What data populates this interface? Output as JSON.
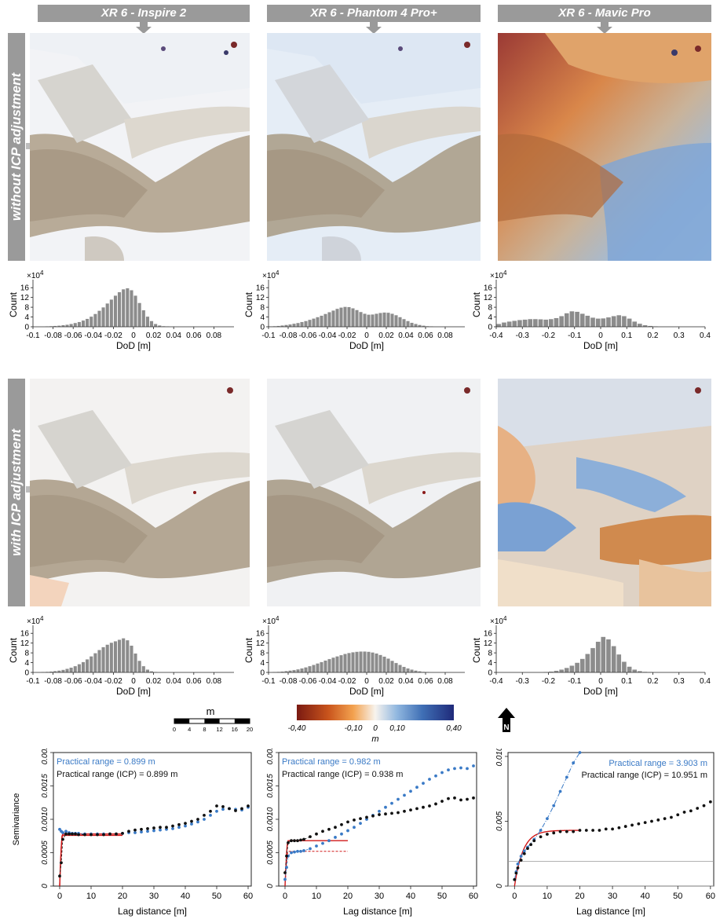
{
  "columns": [
    {
      "title": "XR 6 - Inspire 2"
    },
    {
      "title": "XR 6 - Phantom 4 Pro+"
    },
    {
      "title": "XR 6 - Mavic Pro"
    }
  ],
  "rows": [
    {
      "label": "without ICP adjustment"
    },
    {
      "label": "with ICP adjustment"
    }
  ],
  "histograms": {
    "ylabel": "Count",
    "xlabel": "DoD [m]",
    "exponent_base": "×10",
    "exponent": "4",
    "yticks": [
      "0",
      "4",
      "8",
      "12",
      "16"
    ],
    "xticks_small": [
      "-0.1",
      "-0.08",
      "-0.06",
      "-0.04",
      "-0.02",
      "0",
      "0.02",
      "0.04",
      "0.06",
      "0.08"
    ],
    "xticks_large": [
      "-0.4",
      "-0.3",
      "-0.2",
      "-0.1",
      "0",
      "0.1",
      "0.2",
      "0.3",
      "0.4"
    ]
  },
  "scale_bar": {
    "unit": "m",
    "ticks": [
      "0",
      "4",
      "8",
      "12",
      "16",
      "20"
    ]
  },
  "color_bar": {
    "unit": "m",
    "ticks": [
      "-0,40",
      "-0,10",
      "0",
      "0,10",
      "0,40"
    ],
    "colors": [
      "#7a1a12",
      "#c9541c",
      "#f3a24f",
      "#f7f3ee",
      "#8fb6df",
      "#3f6fb5",
      "#1f2a7a"
    ]
  },
  "north_label": "N",
  "colors": {
    "blue_series": "#3a7ac6",
    "black_series": "#111111",
    "fit": "#d01818"
  },
  "chart_data": [
    {
      "type": "bar",
      "panel": "without ICP - Inspire 2",
      "xlabel": "DoD [m]",
      "ylabel": "Count",
      "y_unit": "x10^4",
      "xlim": [
        -0.1,
        0.1
      ],
      "ylim": [
        0,
        18
      ],
      "x": [
        -0.098,
        -0.094,
        -0.09,
        -0.086,
        -0.082,
        -0.078,
        -0.074,
        -0.07,
        -0.066,
        -0.062,
        -0.058,
        -0.054,
        -0.05,
        -0.046,
        -0.042,
        -0.038,
        -0.034,
        -0.03,
        -0.026,
        -0.022,
        -0.018,
        -0.014,
        -0.01,
        -0.006,
        -0.002,
        0.002,
        0.006,
        0.01,
        0.014,
        0.018,
        0.022,
        0.026,
        0.03,
        0.034,
        0.038,
        0.042,
        0.046,
        0.05
      ],
      "values": [
        0.1,
        0.1,
        0.1,
        0.2,
        0.3,
        0.4,
        0.5,
        0.7,
        0.9,
        1.2,
        1.6,
        2.0,
        2.6,
        3.3,
        4.2,
        5.3,
        6.6,
        8.0,
        9.6,
        11.2,
        12.8,
        14.2,
        15.4,
        15.8,
        15.0,
        12.8,
        9.8,
        6.8,
        4.2,
        2.4,
        1.2,
        0.6,
        0.3,
        0.2,
        0.1,
        0.1,
        0.1,
        0.1
      ]
    },
    {
      "type": "bar",
      "panel": "without ICP - Phantom 4 Pro+",
      "xlabel": "DoD [m]",
      "ylabel": "Count",
      "y_unit": "x10^4",
      "xlim": [
        -0.1,
        0.1
      ],
      "ylim": [
        0,
        18
      ],
      "x": [
        -0.098,
        -0.094,
        -0.09,
        -0.086,
        -0.082,
        -0.078,
        -0.074,
        -0.07,
        -0.066,
        -0.062,
        -0.058,
        -0.054,
        -0.05,
        -0.046,
        -0.042,
        -0.038,
        -0.034,
        -0.03,
        -0.026,
        -0.022,
        -0.018,
        -0.014,
        -0.01,
        -0.006,
        -0.002,
        0.002,
        0.006,
        0.01,
        0.014,
        0.018,
        0.022,
        0.026,
        0.03,
        0.034,
        0.038,
        0.042,
        0.046,
        0.05,
        0.054,
        0.058,
        0.062,
        0.066,
        0.07,
        0.074,
        0.078
      ],
      "values": [
        0.2,
        0.3,
        0.4,
        0.6,
        0.8,
        1.0,
        1.3,
        1.6,
        2.0,
        2.4,
        2.9,
        3.4,
        4.0,
        4.6,
        5.3,
        6.0,
        6.7,
        7.4,
        7.9,
        8.2,
        8.1,
        7.6,
        6.9,
        6.1,
        5.4,
        5.0,
        5.1,
        5.4,
        5.7,
        5.9,
        5.8,
        5.4,
        4.8,
        4.0,
        3.2,
        2.4,
        1.7,
        1.2,
        0.8,
        0.5,
        0.3,
        0.2,
        0.1,
        0.1,
        0.1
      ]
    },
    {
      "type": "bar",
      "panel": "without ICP - Mavic Pro",
      "xlabel": "DoD [m]",
      "ylabel": "Count",
      "y_unit": "x10^4",
      "xlim": [
        -0.4,
        0.4
      ],
      "ylim": [
        0,
        18
      ],
      "x": [
        -0.39,
        -0.37,
        -0.35,
        -0.33,
        -0.31,
        -0.29,
        -0.27,
        -0.25,
        -0.23,
        -0.21,
        -0.19,
        -0.17,
        -0.15,
        -0.13,
        -0.11,
        -0.09,
        -0.07,
        -0.05,
        -0.03,
        -0.01,
        0.01,
        0.03,
        0.05,
        0.07,
        0.09,
        0.11,
        0.13,
        0.15,
        0.17,
        0.19,
        0.21,
        0.23
      ],
      "values": [
        1.2,
        1.8,
        2.2,
        2.5,
        2.8,
        3.0,
        3.2,
        3.2,
        3.1,
        3.0,
        3.2,
        3.6,
        4.4,
        5.6,
        6.4,
        6.2,
        5.4,
        4.6,
        3.8,
        3.4,
        3.5,
        3.9,
        4.4,
        4.8,
        4.4,
        3.4,
        2.2,
        1.3,
        0.7,
        0.4,
        0.2,
        0.1
      ]
    },
    {
      "type": "bar",
      "panel": "with ICP - Inspire 2",
      "xlabel": "DoD [m]",
      "ylabel": "Count",
      "y_unit": "x10^4",
      "xlim": [
        -0.1,
        0.1
      ],
      "ylim": [
        0,
        18
      ],
      "x": [
        -0.098,
        -0.094,
        -0.09,
        -0.086,
        -0.082,
        -0.078,
        -0.074,
        -0.07,
        -0.066,
        -0.062,
        -0.058,
        -0.054,
        -0.05,
        -0.046,
        -0.042,
        -0.038,
        -0.034,
        -0.03,
        -0.026,
        -0.022,
        -0.018,
        -0.014,
        -0.01,
        -0.006,
        -0.002,
        0.002,
        0.006,
        0.01,
        0.014,
        0.018,
        0.022
      ],
      "values": [
        0.1,
        0.1,
        0.2,
        0.3,
        0.4,
        0.6,
        0.8,
        1.1,
        1.5,
        2.0,
        2.6,
        3.4,
        4.3,
        5.4,
        6.6,
        7.9,
        9.2,
        10.4,
        11.4,
        12.2,
        12.8,
        13.4,
        14.0,
        13.2,
        11.0,
        7.8,
        4.8,
        2.6,
        1.2,
        0.5,
        0.2
      ]
    },
    {
      "type": "bar",
      "panel": "with ICP - Phantom 4 Pro+",
      "xlabel": "DoD [m]",
      "ylabel": "Count",
      "y_unit": "x10^4",
      "xlim": [
        -0.1,
        0.1
      ],
      "ylim": [
        0,
        18
      ],
      "x": [
        -0.098,
        -0.094,
        -0.09,
        -0.086,
        -0.082,
        -0.078,
        -0.074,
        -0.07,
        -0.066,
        -0.062,
        -0.058,
        -0.054,
        -0.05,
        -0.046,
        -0.042,
        -0.038,
        -0.034,
        -0.03,
        -0.026,
        -0.022,
        -0.018,
        -0.014,
        -0.01,
        -0.006,
        -0.002,
        0.002,
        0.006,
        0.01,
        0.014,
        0.018,
        0.022,
        0.026,
        0.03,
        0.034,
        0.038,
        0.042,
        0.046,
        0.05,
        0.054,
        0.058,
        0.062,
        0.066,
        0.07
      ],
      "values": [
        0.1,
        0.2,
        0.3,
        0.4,
        0.6,
        0.8,
        1.0,
        1.3,
        1.7,
        2.1,
        2.6,
        3.1,
        3.7,
        4.3,
        4.9,
        5.5,
        6.1,
        6.6,
        7.1,
        7.6,
        8.0,
        8.3,
        8.5,
        8.6,
        8.6,
        8.5,
        8.2,
        7.8,
        7.2,
        6.5,
        5.7,
        4.8,
        3.9,
        3.1,
        2.3,
        1.7,
        1.2,
        0.8,
        0.5,
        0.3,
        0.2,
        0.1,
        0.1
      ]
    },
    {
      "type": "bar",
      "panel": "with ICP - Mavic Pro",
      "xlabel": "DoD [m]",
      "ylabel": "Count",
      "y_unit": "x10^4",
      "xlim": [
        -0.4,
        0.4
      ],
      "ylim": [
        0,
        18
      ],
      "x": [
        -0.23,
        -0.21,
        -0.19,
        -0.17,
        -0.15,
        -0.13,
        -0.11,
        -0.09,
        -0.07,
        -0.05,
        -0.03,
        -0.01,
        0.01,
        0.03,
        0.05,
        0.07,
        0.09,
        0.11,
        0.13,
        0.15,
        0.17,
        0.19,
        0.21,
        0.23
      ],
      "values": [
        0.1,
        0.2,
        0.4,
        0.7,
        1.2,
        1.9,
        2.8,
        4.0,
        5.6,
        7.6,
        10.0,
        12.6,
        14.6,
        13.6,
        10.8,
        7.4,
        4.4,
        2.4,
        1.2,
        0.6,
        0.3,
        0.2,
        0.1,
        0.1
      ]
    },
    {
      "type": "scatter",
      "panel": "semivariogram - Inspire 2",
      "xlabel": "Lag distance [m]",
      "ylabel": "Semivariance",
      "xlim": [
        -2,
        61
      ],
      "ylim": [
        0,
        0.002
      ],
      "annotations": [
        "Practical range = 0.899 m",
        "Practical range (ICP) = 0.899 m"
      ],
      "series": [
        {
          "x": [
            0,
            0.5,
            1,
            2,
            3,
            4,
            5,
            6,
            8,
            10,
            12,
            14,
            16,
            18,
            20,
            22,
            24,
            26,
            28,
            30,
            32,
            34,
            36,
            38,
            40,
            42,
            44,
            46,
            48,
            50,
            52,
            54,
            56,
            58,
            60
          ],
          "values": [
            0.00085,
            0.00082,
            0.0008,
            0.00082,
            0.0008,
            0.00079,
            0.00079,
            0.00079,
            0.00078,
            0.00078,
            0.00078,
            0.00078,
            0.00078,
            0.00078,
            0.00079,
            0.0008,
            0.0008,
            0.00081,
            0.00082,
            0.00083,
            0.00084,
            0.00085,
            0.00086,
            0.00088,
            0.0009,
            0.00093,
            0.00096,
            0.001,
            0.00106,
            0.00112,
            0.00115,
            0.00116,
            0.00115,
            0.00114,
            0.00118
          ]
        },
        {
          "x": [
            0,
            0.5,
            1,
            2,
            3,
            4,
            5,
            6,
            8,
            10,
            12,
            14,
            16,
            18,
            20,
            22,
            24,
            26,
            28,
            30,
            32,
            34,
            36,
            38,
            40,
            42,
            44,
            46,
            48,
            50,
            52,
            54,
            56,
            58,
            60
          ],
          "values": [
            0.00015,
            0.00035,
            0.0007,
            0.00078,
            0.00078,
            0.00078,
            0.00078,
            0.00077,
            0.00077,
            0.00077,
            0.00077,
            0.00077,
            0.00078,
            0.00078,
            0.00079,
            0.00082,
            0.00084,
            0.00085,
            0.00086,
            0.00087,
            0.00088,
            0.00088,
            0.0009,
            0.00092,
            0.00094,
            0.00097,
            0.001,
            0.00106,
            0.00112,
            0.0012,
            0.00119,
            0.00116,
            0.00113,
            0.00116,
            0.0012
          ]
        }
      ]
    },
    {
      "type": "scatter",
      "panel": "semivariogram - Phantom 4 Pro+",
      "xlabel": "Lag distance [m]",
      "ylabel": "",
      "xlim": [
        -2,
        61
      ],
      "ylim": [
        0,
        0.002
      ],
      "annotations": [
        "Practical range = 0.982 m",
        "Practical range (ICP) = 0.938 m"
      ],
      "series": [
        {
          "x": [
            0,
            0.5,
            1,
            2,
            3,
            4,
            5,
            6,
            8,
            10,
            12,
            14,
            16,
            18,
            20,
            22,
            24,
            26,
            28,
            30,
            32,
            34,
            36,
            38,
            40,
            42,
            44,
            46,
            48,
            50,
            52,
            54,
            56,
            58,
            60
          ],
          "values": [
            0.0001,
            0.00028,
            0.00045,
            0.0005,
            0.00051,
            0.00052,
            0.00052,
            0.00053,
            0.00056,
            0.0006,
            0.00064,
            0.00068,
            0.00073,
            0.00078,
            0.00083,
            0.00088,
            0.00094,
            0.001,
            0.00106,
            0.00112,
            0.00118,
            0.00124,
            0.0013,
            0.00136,
            0.00142,
            0.00148,
            0.00154,
            0.0016,
            0.00165,
            0.0017,
            0.00174,
            0.00176,
            0.00177,
            0.00176,
            0.0018
          ]
        },
        {
          "x": [
            0,
            0.5,
            1,
            2,
            3,
            4,
            5,
            6,
            8,
            10,
            12,
            14,
            16,
            18,
            20,
            22,
            24,
            26,
            28,
            30,
            32,
            34,
            36,
            38,
            40,
            42,
            44,
            46,
            48,
            50,
            52,
            54,
            56,
            58,
            60
          ],
          "values": [
            0.0002,
            0.00045,
            0.00065,
            0.00068,
            0.00068,
            0.00068,
            0.00069,
            0.0007,
            0.00074,
            0.00078,
            0.00082,
            0.00085,
            0.00088,
            0.00092,
            0.00096,
            0.00099,
            0.00101,
            0.00103,
            0.00105,
            0.00107,
            0.00108,
            0.00109,
            0.0011,
            0.00112,
            0.00114,
            0.00116,
            0.00118,
            0.0012,
            0.00123,
            0.00127,
            0.00131,
            0.00132,
            0.00129,
            0.0013,
            0.00132
          ]
        }
      ]
    },
    {
      "type": "scatter",
      "panel": "semivariogram - Mavic Pro",
      "xlabel": "Lag distance [m]",
      "ylabel": "",
      "xlim": [
        -2,
        61
      ],
      "ylim": [
        0,
        0.0103
      ],
      "annotations": [
        "Practical range = 3.903 m",
        "Practical range (ICP) = 10.951 m"
      ],
      "series": [
        {
          "x": [
            0,
            0.5,
            1,
            2,
            3,
            4,
            6,
            8,
            10,
            12,
            14,
            16,
            18,
            20
          ],
          "values": [
            0.0005,
            0.0011,
            0.0017,
            0.0023,
            0.0027,
            0.003,
            0.0036,
            0.0043,
            0.0052,
            0.0062,
            0.0073,
            0.0084,
            0.0095,
            0.0105
          ]
        },
        {
          "x": [
            0,
            0.5,
            1,
            2,
            3,
            4,
            5,
            6,
            8,
            10,
            12,
            14,
            16,
            18,
            20,
            22,
            24,
            26,
            28,
            30,
            32,
            34,
            36,
            38,
            40,
            42,
            44,
            46,
            48,
            50,
            52,
            54,
            56,
            58,
            60
          ],
          "values": [
            0.0005,
            0.001,
            0.0014,
            0.002,
            0.0025,
            0.0029,
            0.0032,
            0.0035,
            0.0038,
            0.004,
            0.0041,
            0.0042,
            0.0042,
            0.0042,
            0.0043,
            0.0043,
            0.0043,
            0.0043,
            0.0044,
            0.0044,
            0.0045,
            0.0046,
            0.0047,
            0.0048,
            0.0049,
            0.005,
            0.0051,
            0.0052,
            0.0053,
            0.0055,
            0.0057,
            0.0058,
            0.006,
            0.0062,
            0.0065
          ]
        }
      ]
    }
  ]
}
